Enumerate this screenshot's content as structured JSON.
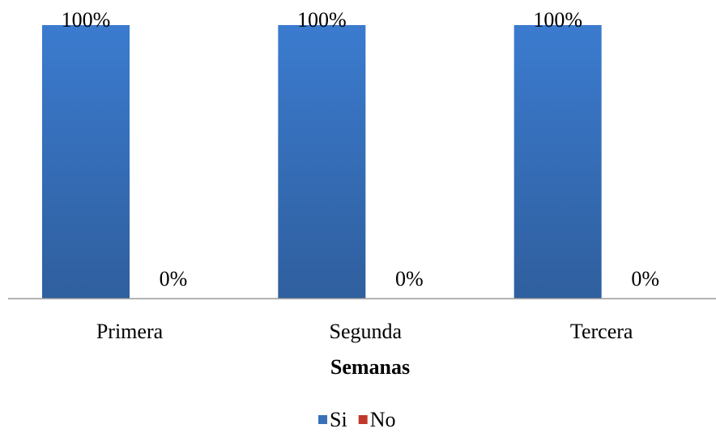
{
  "chart_data": {
    "type": "bar",
    "categories": [
      "Primera",
      "Segunda",
      "Tercera"
    ],
    "series": [
      {
        "name": "Si",
        "values": [
          100,
          100,
          100
        ],
        "labels": [
          "100%",
          "100%",
          "100%"
        ],
        "color": "#3a70b8"
      },
      {
        "name": "No",
        "values": [
          0,
          0,
          0
        ],
        "labels": [
          "0%",
          "0%",
          "0%"
        ],
        "color": "#c0392b"
      }
    ],
    "xlabel": "Semanas",
    "ylabel": "",
    "ylim": [
      0,
      100
    ],
    "grid": false,
    "legend_position": "bottom"
  }
}
